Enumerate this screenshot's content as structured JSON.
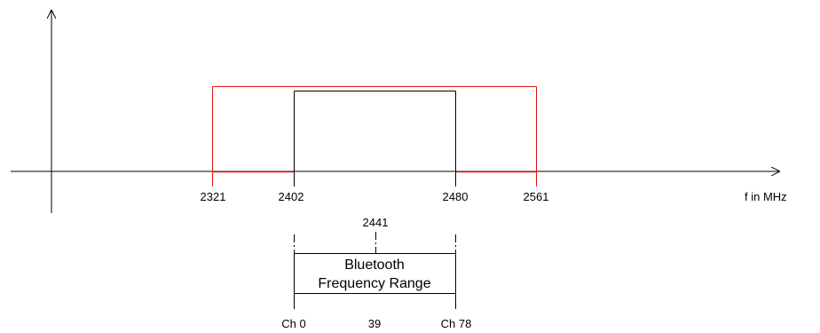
{
  "axis": {
    "x_label": "f in MHz"
  },
  "frequency_ticks": [
    "2321",
    "2402",
    "2480",
    "2561"
  ],
  "center_marker": "2441",
  "bands": {
    "outer": {
      "from": "2321",
      "to": "2561",
      "color": "#e01010"
    },
    "bluetooth": {
      "from": "2402",
      "to": "2480",
      "color": "#000000"
    }
  },
  "bluetooth_box": {
    "line1": "Bluetooth",
    "line2": "Frequency Range"
  },
  "channels": [
    "Ch 0",
    "39",
    "Ch 78"
  ]
}
